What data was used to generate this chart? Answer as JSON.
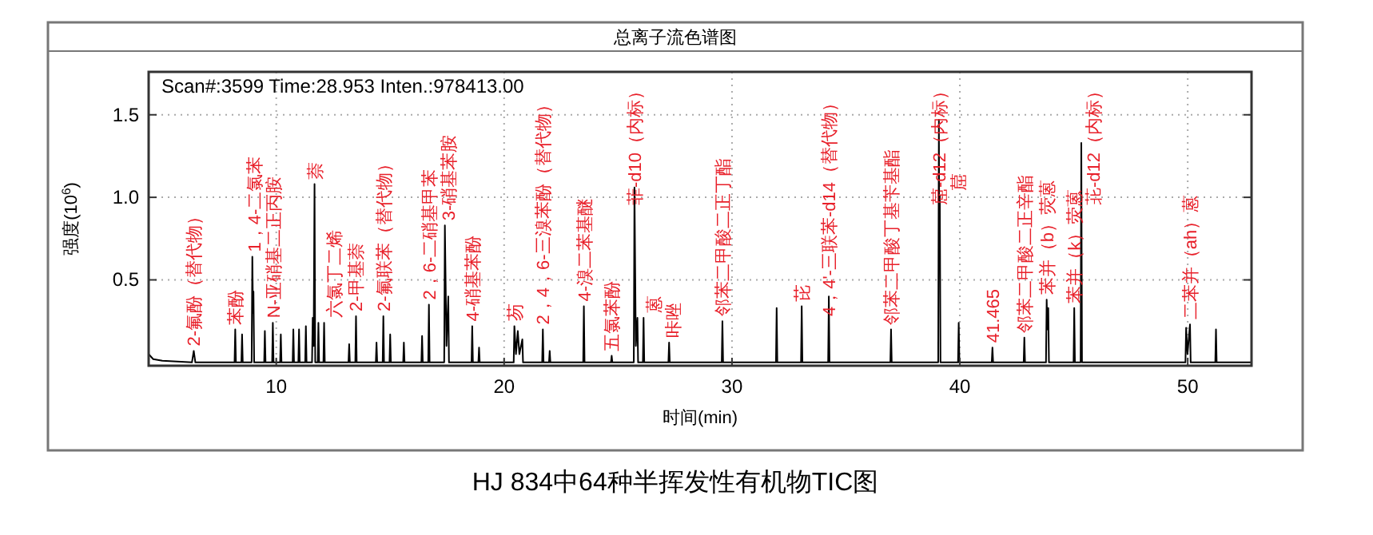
{
  "chart_data": {
    "type": "line",
    "title": "总离子流色谱图",
    "xlabel": "时间(min)",
    "ylabel": "强度(10$^{6}$)",
    "xlim": [
      4.4,
      52.8
    ],
    "ylim": [
      -0.02,
      1.76
    ],
    "xticks": [
      10,
      20,
      30,
      40,
      50
    ],
    "yticks": [
      {
        "value": 0.5,
        "label": "0.5"
      },
      {
        "value": 1.0,
        "label": "1.0"
      },
      {
        "value": 1.5,
        "label": "1.5"
      }
    ],
    "grid": true,
    "series": [
      {
        "color": "#000000",
        "x": [
          4.4,
          4.6,
          5.0,
          6.3,
          6.38,
          6.45,
          8.17,
          8.2,
          8.23,
          8.47,
          8.5,
          8.53,
          8.92,
          8.95,
          8.98,
          9.0,
          9.03,
          9.47,
          9.5,
          9.53,
          9.82,
          9.85,
          9.88,
          10.17,
          10.2,
          10.23,
          10.72,
          10.75,
          10.78,
          10.97,
          11.0,
          11.03,
          11.27,
          11.3,
          11.33,
          11.57,
          11.6,
          11.64,
          11.68,
          11.71,
          11.82,
          11.85,
          11.88,
          12.07,
          12.1,
          12.13,
          13.17,
          13.2,
          13.23,
          13.47,
          13.5,
          13.53,
          14.37,
          14.4,
          14.43,
          14.67,
          14.7,
          14.73,
          14.97,
          15.0,
          15.03,
          15.57,
          15.6,
          15.63,
          16.37,
          16.4,
          16.43,
          16.67,
          16.7,
          16.73,
          17.37,
          17.4,
          17.47,
          17.55,
          17.58,
          18.57,
          18.6,
          18.63,
          18.87,
          18.9,
          18.93,
          20.42,
          20.45,
          20.52,
          20.6,
          20.67,
          20.8,
          20.83,
          21.67,
          21.7,
          21.73,
          21.97,
          22.0,
          22.03,
          23.47,
          23.5,
          23.53,
          24.69,
          24.72,
          24.75,
          25.69,
          25.72,
          25.78,
          25.85,
          25.88,
          26.09,
          26.12,
          26.15,
          27.21,
          27.24,
          27.27,
          29.55,
          29.58,
          29.61,
          31.93,
          31.96,
          31.99,
          33.03,
          33.06,
          33.09,
          34.22,
          34.25,
          34.28,
          36.95,
          36.98,
          37.01,
          39.05,
          39.08,
          39.1,
          39.12,
          39.15,
          39.92,
          39.95,
          39.98,
          41.4,
          41.43,
          41.46,
          42.8,
          42.83,
          42.86,
          43.78,
          43.81,
          43.84,
          43.88,
          43.91,
          44.99,
          45.02,
          45.05,
          45.3,
          45.33,
          45.36,
          49.9,
          49.93,
          49.99,
          50.1,
          50.13,
          51.21,
          51.24,
          51.27,
          52.8
        ],
        "values": [
          0.05,
          0.02,
          0.01,
          0,
          0.07,
          0,
          0,
          0.2,
          0,
          0,
          0.17,
          0,
          0,
          0.64,
          0.3,
          0.43,
          0,
          0,
          0.19,
          0,
          0,
          0.24,
          0,
          0,
          0.17,
          0,
          0,
          0.2,
          0,
          0,
          0.2,
          0,
          0,
          0.22,
          0,
          0,
          0.27,
          0.1,
          1.08,
          0,
          0,
          0.24,
          0,
          0,
          0.24,
          0,
          0,
          0.11,
          0,
          0,
          0.28,
          0,
          0,
          0.12,
          0,
          0,
          0.28,
          0,
          0,
          0.17,
          0,
          0,
          0.12,
          0,
          0,
          0.16,
          0,
          0,
          0.35,
          0,
          0,
          0.83,
          0.1,
          0.4,
          0,
          0,
          0.22,
          0,
          0,
          0.09,
          0,
          0,
          0.22,
          0.05,
          0.19,
          0.05,
          0.14,
          0,
          0,
          0.2,
          0,
          0,
          0.07,
          0,
          0,
          0.34,
          0,
          0,
          0.04,
          0,
          0,
          1.06,
          0.1,
          0.27,
          0,
          0,
          0.27,
          0,
          0,
          0.12,
          0,
          0,
          0.25,
          0,
          0,
          0.33,
          0,
          0,
          0.34,
          0,
          0,
          0.4,
          0,
          0,
          0.2,
          0,
          0,
          1.47,
          0.6,
          1.01,
          0,
          0,
          0.24,
          0,
          0,
          0.09,
          0,
          0,
          0.15,
          0,
          0,
          0.38,
          0.2,
          0.33,
          0,
          0,
          0.33,
          0,
          0,
          1.33,
          0,
          0,
          0.21,
          0.05,
          0.23,
          0,
          0,
          0.2,
          0,
          0
        ]
      }
    ],
    "annotations": [
      "Scan#:3599  Time:28.953  Inten.:978413.00",
      "HJ 834中64种半挥发性有机物TIC图",
      {
        "text": "2-氟酚（替代物）",
        "x": 6.38,
        "y": 0.07
      },
      {
        "text": "苯酚",
        "x": 8.2,
        "y": 0.2
      },
      {
        "text": "1，4-二氯苯",
        "x": 8.95,
        "y": 0.64
      },
      {
        "text": "N-亚硝基二正丙胺",
        "x": 9.85,
        "y": 0.24
      },
      {
        "text": "萘",
        "x": 11.68,
        "y": 1.08
      },
      {
        "text": "六氯丁二烯",
        "x": 12.1,
        "y": 0.24
      },
      {
        "text": "2-甲基萘",
        "x": 13.5,
        "y": 0.28
      },
      {
        "text": "2-氟联苯（替代物）",
        "x": 14.7,
        "y": 0.28
      },
      {
        "text": "2，6-二硝基甲苯",
        "x": 16.7,
        "y": 0.35
      },
      {
        "text": "3-硝基苯胺",
        "x": 17.4,
        "y": 0.83
      },
      {
        "text": "4-硝基苯酚",
        "x": 18.6,
        "y": 0.22
      },
      {
        "text": "芴",
        "x": 20.45,
        "y": 0.22
      },
      {
        "text": "2，4，6-三溴苯酚（替代物）",
        "x": 21.7,
        "y": 0.2
      },
      {
        "text": "4-溴二苯基醚",
        "x": 23.5,
        "y": 0.34
      },
      {
        "text": "五氯苯酚",
        "x": 24.72,
        "y": 0.04
      },
      {
        "text": "菲-d10（内标）",
        "x": 25.72,
        "y": 1.06
      },
      {
        "text": "蒽",
        "x": 25.85,
        "y": 0.27
      },
      {
        "text": "咔唑",
        "x": 27.24,
        "y": 0.12
      },
      {
        "text": "邻苯二甲酸二正丁酯",
        "x": 29.58,
        "y": 0.25
      },
      {
        "text": "芘",
        "x": 33.06,
        "y": 0.34
      },
      {
        "text": "4，4'-三联苯-d14（替代物）",
        "x": 34.25,
        "y": 0.4
      },
      {
        "text": "邻苯二甲酸丁基苄基酯",
        "x": 36.98,
        "y": 0.2
      },
      {
        "text": "䓛-d12（内标）",
        "x": 39.08,
        "y": 1.47
      },
      {
        "text": "䓛",
        "x": 39.12,
        "y": 1.01
      },
      {
        "text": "41.465",
        "x": 41.43,
        "y": 0.09
      },
      {
        "text": "邻苯二甲酸二正辛酯",
        "x": 42.83,
        "y": 0.15
      },
      {
        "text": "苯并（b）荧蒽",
        "x": 43.81,
        "y": 0.38
      },
      {
        "text": "苯并（k）荧蒽",
        "x": 45.02,
        "y": 0.33
      },
      {
        "text": "苝-d12（内标）",
        "x": 45.33,
        "y": 1.33
      },
      {
        "text": "二苯并（ah）蒽",
        "x": 50.1,
        "y": 0.23
      }
    ]
  }
}
